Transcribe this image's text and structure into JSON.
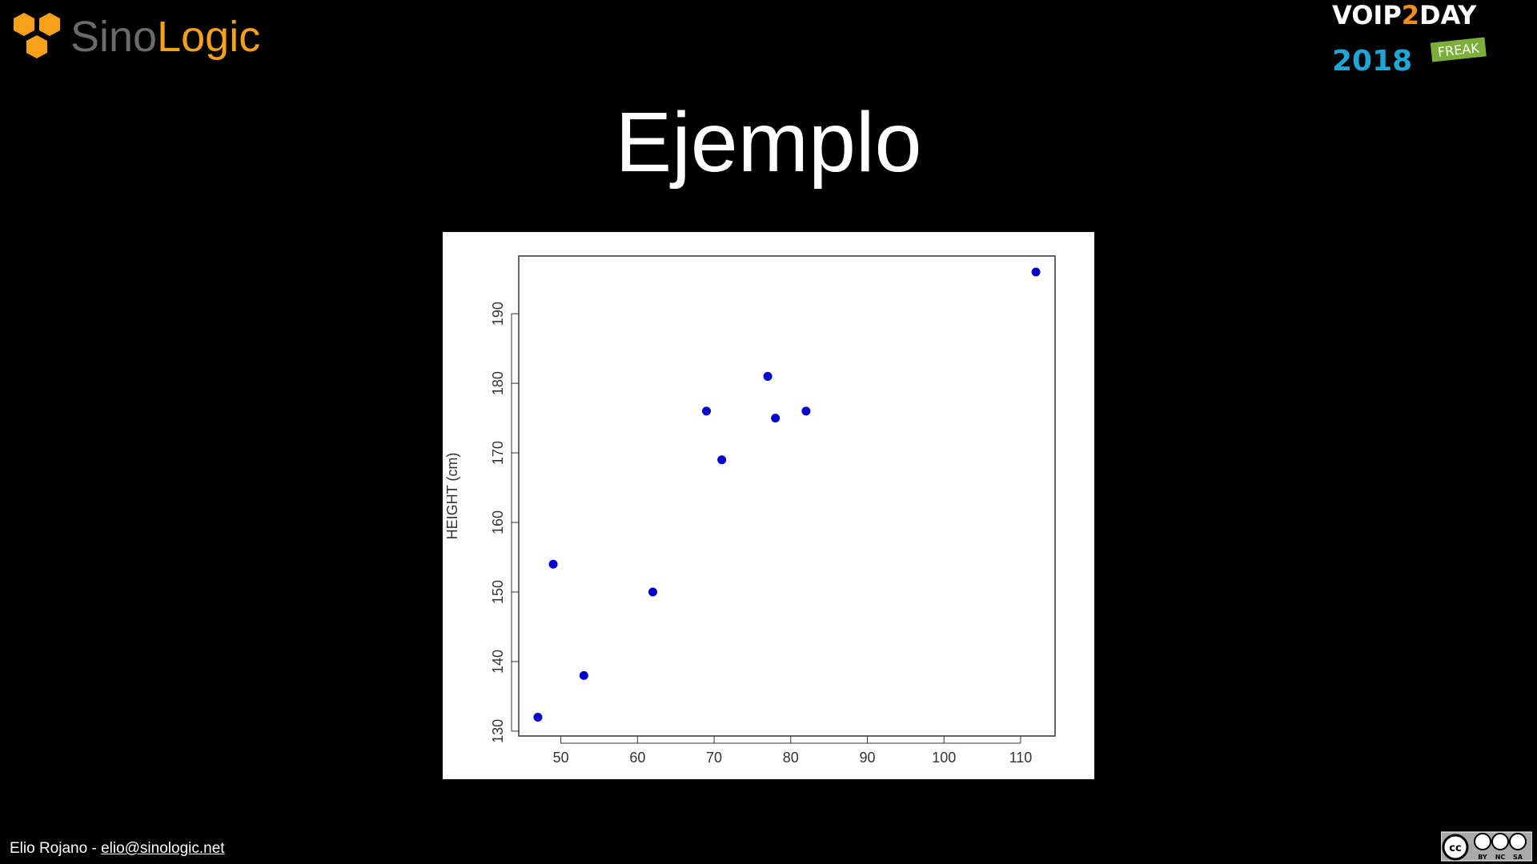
{
  "header": {
    "logo_left": {
      "part1": "Sino",
      "part2": "Logic",
      "colors": {
        "gray": "#6b6b6b",
        "orange": "#f7a11a"
      }
    },
    "logo_right": {
      "line1a": "VOIP",
      "line1b": "2",
      "line1c": "DAY",
      "year": "2018",
      "badge": "FREAK"
    }
  },
  "slide": {
    "title": "Ejemplo"
  },
  "chart_data": {
    "type": "scatter",
    "title": "",
    "xlabel": "",
    "ylabel": "HEIGHT (cm)",
    "xlim": [
      44.5,
      114.5
    ],
    "ylim": [
      129.3,
      198.3
    ],
    "x_ticks": [
      50,
      60,
      70,
      80,
      90,
      100,
      110
    ],
    "y_ticks": [
      130,
      140,
      150,
      160,
      170,
      180,
      190
    ],
    "grid": false,
    "point_color": "#0000cc",
    "x": [
      47,
      49,
      53,
      62,
      69,
      71,
      77,
      78,
      82,
      112
    ],
    "y": [
      132,
      154,
      138,
      150,
      176,
      169,
      181,
      175,
      176,
      196
    ]
  },
  "footer": {
    "author": "Elio Rojano - ",
    "email": "elio@sinologic.net",
    "license": {
      "cc": "cc",
      "labels": [
        "BY",
        "NC",
        "SA"
      ]
    }
  }
}
